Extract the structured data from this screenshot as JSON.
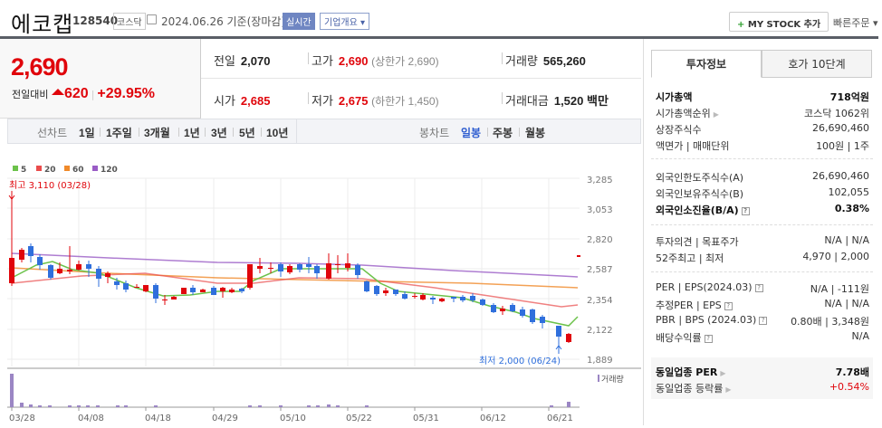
{
  "header": {
    "company_name": "에코캡",
    "stock_code": "128540",
    "market_badge": "코스닥",
    "date_text": "2024.06.26 기준(장마감)",
    "realtime_label": "실시간",
    "corp_overview_label": "기업개요 ▾",
    "mystock_plus": "+",
    "mystock_label": "MY STOCK 추가",
    "quick_order_label": "빠른주문 ▾"
  },
  "price": {
    "current": "2,690",
    "change_label": "전일대비",
    "change_value": "620",
    "change_pct": "+29.95%"
  },
  "stats": {
    "prev_close_label": "전일",
    "prev_close": "2,070",
    "high_label": "고가",
    "high": "2,690",
    "upper_limit": "(상한가 2,690)",
    "volume_label": "거래량",
    "volume": "565,260",
    "open_label": "시가",
    "open": "2,685",
    "low_label": "저가",
    "low": "2,675",
    "lower_limit": "(하한가 1,450)",
    "trade_value_label": "거래대금",
    "trade_value": "1,520 백만"
  },
  "periods": {
    "line_label": "선차트",
    "line_items": [
      "1일",
      "1주일",
      "3개월",
      "1년",
      "3년",
      "5년",
      "10년"
    ],
    "candle_label": "봉차트",
    "candle_items": [
      "일봉",
      "주봉",
      "월봉"
    ],
    "active": "일봉"
  },
  "right_panel": {
    "tabs": [
      "투자정보",
      "호가 10단계"
    ],
    "active_tab": "투자정보",
    "group1": [
      {
        "label": "시가총액",
        "value": "718억원",
        "bold": true
      },
      {
        "label": "시가총액순위",
        "value": "코스닥 1062위",
        "arrow": true
      },
      {
        "label": "상장주식수",
        "value": "26,690,460"
      },
      {
        "label": "액면가 | 매매단위",
        "value": "100원 | 1주"
      }
    ],
    "group2": [
      {
        "label": "외국인한도주식수(A)",
        "value": "26,690,460"
      },
      {
        "label": "외국인보유주식수(B)",
        "value": "102,055"
      },
      {
        "label": "외국인소진율(B/A)",
        "value": "0.38%",
        "bold": true,
        "help": true
      }
    ],
    "group3": [
      {
        "label": "투자의견 | 목표주가",
        "value": "N/A | N/A"
      },
      {
        "label": "52주최고 | 최저",
        "value": "4,970 | 2,000"
      }
    ],
    "group4": [
      {
        "label": "PER | EPS(2024.03)",
        "value": "N/A | -111원",
        "help": true
      },
      {
        "label": "추정PER | EPS",
        "value": "N/A | N/A",
        "help": true
      },
      {
        "label": "PBR | BPS (2024.03)",
        "value": "0.80배 | 3,348원",
        "help": true
      },
      {
        "label": "배당수익률",
        "value": "N/A",
        "help": true
      }
    ],
    "group5": [
      {
        "label": "동일업종 PER",
        "value": "7.78배",
        "bold": true,
        "arrow": true
      },
      {
        "label": "동일업종 등락률",
        "value": "+0.54%",
        "red": true,
        "arrow": true
      }
    ]
  },
  "colors": {
    "up": "#e0050b",
    "down": "#2f6fdc",
    "ma5": "#6cc24a",
    "ma20": "#ea4c4c",
    "ma60": "#f08a2a",
    "ma120": "#9a5cc6",
    "volume": "#9b86c4"
  },
  "chart_data": {
    "type": "candlestick",
    "legend": [
      "5",
      "20",
      "60",
      "120"
    ],
    "y_ticks": [
      "3,285",
      "3,053",
      "2,820",
      "2,587",
      "2,354",
      "2,122",
      "1,889"
    ],
    "x_ticks": [
      "03/28",
      "04/08",
      "04/18",
      "04/29",
      "05/10",
      "05/22",
      "05/31",
      "06/12",
      "06/21"
    ],
    "high_annotation": "최고 3,110 (03/28)",
    "low_annotation": "최저 2,000 (06/24)",
    "volume_label": "거래량",
    "ylim": [
      1889,
      3285
    ]
  }
}
